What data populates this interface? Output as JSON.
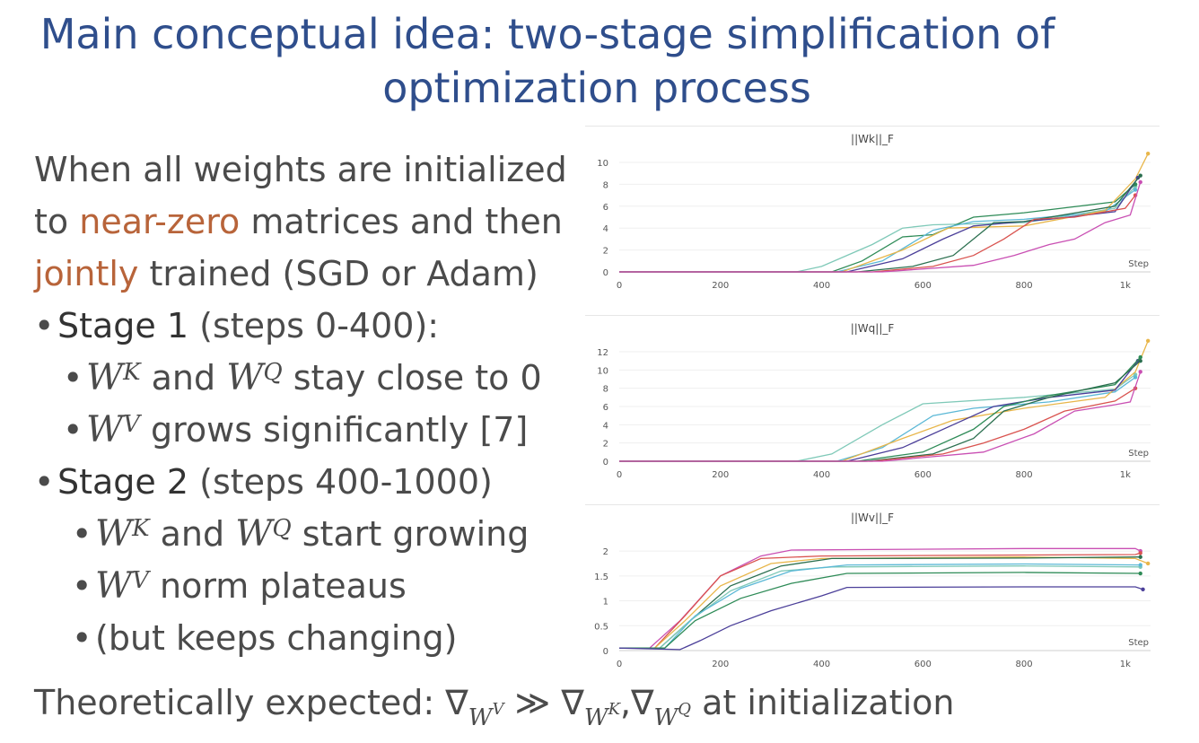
{
  "title": {
    "lead": "Main conceptual idea:",
    "rest1": " two-stage simplification of",
    "rest2": "optimization process"
  },
  "intro": {
    "p1": "When all weights are initialized to ",
    "hl1": "near-zero",
    "p2": " matrices and then ",
    "hl2": "jointly",
    "p3": " trained (SGD or Adam)"
  },
  "bullets": [
    {
      "stage": "Stage 1",
      "text": " (steps 0-400):"
    },
    {
      "text": " and ",
      "text2": " stay close to 0"
    },
    {
      "text": " grows significantly [7]"
    },
    {
      "stage": "Stage 2",
      "text": " (steps 400-1000)"
    },
    {
      "text": " and ",
      "text2": " start growing"
    },
    {
      "text": " norm plateaus"
    },
    {
      "text": "(but keeps changing)"
    }
  ],
  "bottom": {
    "prefix": "Theoretically expected: ",
    "suffix": " at initialization",
    "much": " ≫ ",
    "comma": ","
  },
  "math": {
    "W": "W",
    "K": "K",
    "Q": "Q",
    "V": "V",
    "nabla": "∇"
  },
  "chart_data": [
    {
      "type": "line",
      "title": "||Wk||_F",
      "xlabel": "Step",
      "xlim": [
        0,
        1050
      ],
      "ylim": [
        0,
        10
      ],
      "xticks": [
        "0",
        "200",
        "400",
        "600",
        "800",
        "1k"
      ],
      "xtick_values": [
        0,
        200,
        400,
        600,
        800,
        1000
      ],
      "yticks": [
        0,
        2,
        4,
        6,
        8,
        10
      ],
      "series": [
        {
          "color": "#7fc9b8",
          "values": [
            [
              0,
              0
            ],
            [
              350,
              0
            ],
            [
              400,
              0.5
            ],
            [
              500,
              2.5
            ],
            [
              560,
              4.0
            ],
            [
              620,
              4.3
            ],
            [
              800,
              4.5
            ],
            [
              980,
              5.8
            ],
            [
              1020,
              7.8
            ]
          ]
        },
        {
          "color": "#2e8b57",
          "values": [
            [
              0,
              0
            ],
            [
              420,
              0
            ],
            [
              480,
              1.0
            ],
            [
              560,
              3.2
            ],
            [
              620,
              3.4
            ],
            [
              700,
              5.0
            ],
            [
              800,
              5.4
            ],
            [
              980,
              6.4
            ],
            [
              1020,
              8.0
            ]
          ]
        },
        {
          "color": "#5bb8d6",
          "values": [
            [
              0,
              0
            ],
            [
              430,
              0
            ],
            [
              520,
              1.0
            ],
            [
              620,
              3.8
            ],
            [
              700,
              4.6
            ],
            [
              800,
              4.8
            ],
            [
              960,
              5.5
            ],
            [
              1020,
              7.5
            ]
          ]
        },
        {
          "color": "#e8b64a",
          "values": [
            [
              0,
              0
            ],
            [
              440,
              0
            ],
            [
              560,
              2.0
            ],
            [
              650,
              4.0
            ],
            [
              800,
              4.2
            ],
            [
              960,
              5.6
            ],
            [
              1020,
              8.5
            ],
            [
              1045,
              10.8
            ]
          ]
        },
        {
          "color": "#4b3f99",
          "values": [
            [
              0,
              0
            ],
            [
              450,
              0
            ],
            [
              560,
              1.2
            ],
            [
              640,
              3.0
            ],
            [
              700,
              4.2
            ],
            [
              850,
              4.8
            ],
            [
              980,
              5.5
            ],
            [
              1025,
              8.6
            ]
          ]
        },
        {
          "color": "#2b6f4f",
          "values": [
            [
              0,
              0
            ],
            [
              470,
              0
            ],
            [
              580,
              0.5
            ],
            [
              660,
              1.5
            ],
            [
              740,
              4.5
            ],
            [
              800,
              4.6
            ],
            [
              980,
              6.0
            ],
            [
              1030,
              8.8
            ]
          ]
        },
        {
          "color": "#d9534f",
          "values": [
            [
              0,
              0
            ],
            [
              500,
              0
            ],
            [
              620,
              0.5
            ],
            [
              700,
              1.5
            ],
            [
              760,
              3.0
            ],
            [
              820,
              4.8
            ],
            [
              900,
              5.0
            ],
            [
              1000,
              5.8
            ],
            [
              1020,
              7.0
            ]
          ]
        },
        {
          "color": "#c94fb3",
          "values": [
            [
              0,
              0
            ],
            [
              520,
              0
            ],
            [
              700,
              0.6
            ],
            [
              780,
              1.5
            ],
            [
              850,
              2.5
            ],
            [
              900,
              3.0
            ],
            [
              960,
              4.5
            ],
            [
              1010,
              5.2
            ],
            [
              1030,
              8.2
            ]
          ]
        }
      ]
    },
    {
      "type": "line",
      "title": "||Wq||_F",
      "xlabel": "Step",
      "xlim": [
        0,
        1050
      ],
      "ylim": [
        0,
        12
      ],
      "xticks": [
        "0",
        "200",
        "400",
        "600",
        "800",
        "1k"
      ],
      "xtick_values": [
        0,
        200,
        400,
        600,
        800,
        1000
      ],
      "yticks": [
        0,
        2,
        4,
        6,
        8,
        10,
        12
      ],
      "series": [
        {
          "color": "#7fc9b8",
          "values": [
            [
              0,
              0
            ],
            [
              350,
              0
            ],
            [
              420,
              0.8
            ],
            [
              520,
              4.0
            ],
            [
              600,
              6.3
            ],
            [
              800,
              7.0
            ],
            [
              980,
              7.9
            ],
            [
              1020,
              9.5
            ]
          ]
        },
        {
          "color": "#5bb8d6",
          "values": [
            [
              0,
              0
            ],
            [
              430,
              0
            ],
            [
              520,
              1.5
            ],
            [
              620,
              5.0
            ],
            [
              700,
              5.8
            ],
            [
              850,
              6.5
            ],
            [
              980,
              7.6
            ],
            [
              1020,
              9.2
            ]
          ]
        },
        {
          "color": "#e8b64a",
          "values": [
            [
              0,
              0
            ],
            [
              440,
              0
            ],
            [
              560,
              2.5
            ],
            [
              660,
              4.5
            ],
            [
              800,
              5.8
            ],
            [
              960,
              7.0
            ],
            [
              1020,
              9.8
            ],
            [
              1045,
              13.2
            ]
          ]
        },
        {
          "color": "#4b3f99",
          "values": [
            [
              0,
              0
            ],
            [
              450,
              0
            ],
            [
              560,
              1.5
            ],
            [
              660,
              4.0
            ],
            [
              740,
              6.0
            ],
            [
              850,
              7.0
            ],
            [
              980,
              7.8
            ],
            [
              1025,
              11.0
            ]
          ]
        },
        {
          "color": "#2e8b57",
          "values": [
            [
              0,
              0
            ],
            [
              470,
              0
            ],
            [
              600,
              1.0
            ],
            [
              700,
              3.5
            ],
            [
              760,
              6.0
            ],
            [
              850,
              7.2
            ],
            [
              980,
              8.4
            ],
            [
              1030,
              11.4
            ]
          ]
        },
        {
          "color": "#2b6f4f",
          "values": [
            [
              0,
              0
            ],
            [
              490,
              0
            ],
            [
              620,
              0.8
            ],
            [
              700,
              2.5
            ],
            [
              760,
              5.5
            ],
            [
              850,
              7.0
            ],
            [
              980,
              8.6
            ],
            [
              1030,
              11.0
            ]
          ]
        },
        {
          "color": "#d9534f",
          "values": [
            [
              0,
              0
            ],
            [
              500,
              0
            ],
            [
              640,
              0.8
            ],
            [
              720,
              2.0
            ],
            [
              800,
              3.5
            ],
            [
              880,
              5.5
            ],
            [
              980,
              6.6
            ],
            [
              1020,
              8.0
            ]
          ]
        },
        {
          "color": "#c94fb3",
          "values": [
            [
              0,
              0
            ],
            [
              520,
              0
            ],
            [
              720,
              1.0
            ],
            [
              820,
              3.0
            ],
            [
              900,
              5.5
            ],
            [
              980,
              6.2
            ],
            [
              1010,
              6.5
            ],
            [
              1030,
              9.8
            ]
          ]
        }
      ]
    },
    {
      "type": "line",
      "title": "||Wv||_F",
      "xlabel": "Step",
      "xlim": [
        0,
        1050
      ],
      "ylim": [
        0,
        2.2
      ],
      "xticks": [
        "0",
        "200",
        "400",
        "600",
        "800",
        "1k"
      ],
      "xtick_values": [
        0,
        200,
        400,
        600,
        800,
        1000
      ],
      "yticks": [
        "0",
        "0.5",
        "1",
        "1.5",
        "2"
      ],
      "ytick_values": [
        0,
        0.5,
        1,
        1.5,
        2
      ],
      "series": [
        {
          "color": "#c94fb3",
          "values": [
            [
              0,
              0.05
            ],
            [
              60,
              0.05
            ],
            [
              120,
              0.6
            ],
            [
              200,
              1.5
            ],
            [
              280,
              1.9
            ],
            [
              340,
              2.02
            ],
            [
              500,
              2.03
            ],
            [
              800,
              2.05
            ],
            [
              1020,
              2.05
            ],
            [
              1030,
              2.0
            ]
          ]
        },
        {
          "color": "#d9534f",
          "values": [
            [
              0,
              0.05
            ],
            [
              70,
              0.05
            ],
            [
              130,
              0.7
            ],
            [
              200,
              1.5
            ],
            [
              280,
              1.85
            ],
            [
              400,
              1.9
            ],
            [
              800,
              1.92
            ],
            [
              1020,
              1.93
            ],
            [
              1030,
              1.96
            ]
          ]
        },
        {
          "color": "#e8b64a",
          "values": [
            [
              0,
              0.05
            ],
            [
              70,
              0.05
            ],
            [
              130,
              0.6
            ],
            [
              200,
              1.3
            ],
            [
              300,
              1.75
            ],
            [
              400,
              1.85
            ],
            [
              800,
              1.88
            ],
            [
              1020,
              1.85
            ],
            [
              1045,
              1.75
            ]
          ]
        },
        {
          "color": "#2b6f4f",
          "values": [
            [
              0,
              0.05
            ],
            [
              80,
              0.05
            ],
            [
              140,
              0.6
            ],
            [
              220,
              1.3
            ],
            [
              320,
              1.7
            ],
            [
              420,
              1.85
            ],
            [
              800,
              1.86
            ],
            [
              1030,
              1.88
            ]
          ]
        },
        {
          "color": "#7fc9b8",
          "values": [
            [
              0,
              0.05
            ],
            [
              80,
              0.05
            ],
            [
              140,
              0.6
            ],
            [
              220,
              1.2
            ],
            [
              320,
              1.6
            ],
            [
              420,
              1.68
            ],
            [
              800,
              1.7
            ],
            [
              1030,
              1.68
            ]
          ]
        },
        {
          "color": "#5bb8d6",
          "values": [
            [
              0,
              0.05
            ],
            [
              90,
              0.05
            ],
            [
              150,
              0.7
            ],
            [
              240,
              1.25
            ],
            [
              340,
              1.6
            ],
            [
              450,
              1.72
            ],
            [
              800,
              1.74
            ],
            [
              1030,
              1.72
            ]
          ]
        },
        {
          "color": "#2e8b57",
          "values": [
            [
              0,
              0.05
            ],
            [
              90,
              0.05
            ],
            [
              150,
              0.6
            ],
            [
              240,
              1.05
            ],
            [
              340,
              1.35
            ],
            [
              450,
              1.55
            ],
            [
              800,
              1.57
            ],
            [
              1030,
              1.55
            ]
          ]
        },
        {
          "color": "#4b3f99",
          "values": [
            [
              0,
              0.05
            ],
            [
              120,
              0.02
            ],
            [
              160,
              0.2
            ],
            [
              220,
              0.5
            ],
            [
              300,
              0.8
            ],
            [
              400,
              1.1
            ],
            [
              450,
              1.27
            ],
            [
              800,
              1.28
            ],
            [
              1020,
              1.28
            ],
            [
              1035,
              1.23
            ]
          ]
        }
      ]
    }
  ]
}
